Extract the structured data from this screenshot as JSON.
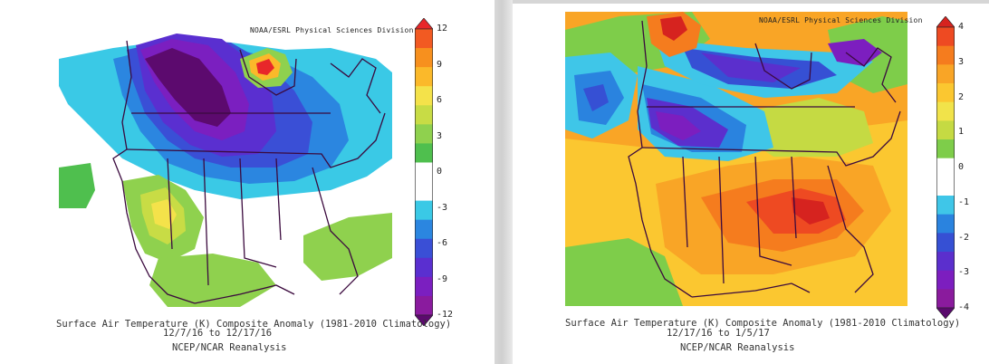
{
  "source_credit": "NOAA/ESRL Physical Sciences Division",
  "left_panel": {
    "title": "Surface Air Temperature (K) Composite Anomaly (1981-2010 Climatology)",
    "dates": "12/7/16  to 12/17/16",
    "reanalysis": "NCEP/NCAR Reanalysis",
    "colorbar": {
      "ticks": [
        "12",
        "9",
        "6",
        "3",
        "0",
        "-3",
        "-6",
        "-9",
        "-12"
      ],
      "colors": [
        "#e8272a",
        "#f25a22",
        "#f7901e",
        "#fbb92a",
        "#f4e24a",
        "#c8dc45",
        "#8fd14e",
        "#4fbf4e",
        "#ffffff",
        "#ffffff",
        "#3ac9e6",
        "#2b86e0",
        "#3a4fd6",
        "#5a2fd0",
        "#7b1fc0",
        "#8a1b9e",
        "#5c0a6e"
      ]
    }
  },
  "right_panel": {
    "title": "Surface Air Temperature (K) Composite Anomaly (1981-2010 Climatology)",
    "dates": "12/17/16  to  1/5/17",
    "reanalysis": "NCEP/NCAR Reanalysis",
    "colorbar": {
      "ticks": [
        "4",
        "3",
        "2",
        "1",
        "0",
        "-1",
        "-2",
        "-3",
        "-4"
      ],
      "colors": [
        "#d6231f",
        "#ee4a22",
        "#f57c1e",
        "#f9a526",
        "#fbc730",
        "#f1e34a",
        "#c5da43",
        "#7ecd4a",
        "#ffffff",
        "#ffffff",
        "#3fc6e8",
        "#2a83df",
        "#3650d4",
        "#5b2fcd",
        "#7c1ebf",
        "#8a1b9d",
        "#5a0a6d"
      ]
    }
  }
}
